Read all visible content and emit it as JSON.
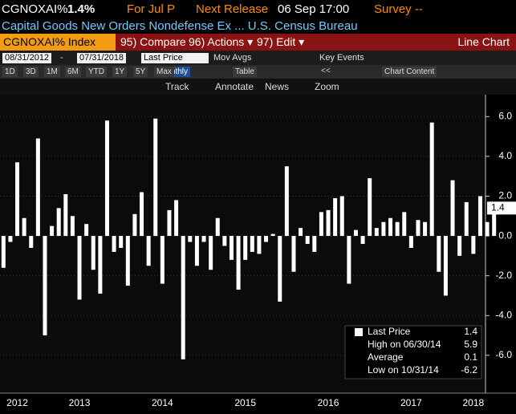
{
  "header": {
    "ticker": "CGNOXAI%",
    "price": "1.4%",
    "period": "For Jul P",
    "next_release": "Next Release",
    "release_date": "06 Sep 17:00",
    "survey": "Survey --",
    "description": "Capital Goods New Orders Nondefense Ex ... U.S. Census Bureau"
  },
  "tabs": {
    "security": "CGNOXAI% Index",
    "menus": [
      "95) Compare",
      "96) Actions ▾",
      "97) Edit ▾"
    ],
    "view": "Line Chart"
  },
  "toolbar": {
    "start_date": "08/31/2012",
    "end_date": "07/31/2018",
    "field": "Last Price",
    "mov_avgs": "Mov Avgs",
    "key_events": "Key Events"
  },
  "ranges": {
    "items": [
      "1D",
      "3D",
      "1M",
      "6M",
      "YTD",
      "1Y",
      "5Y",
      "Max"
    ],
    "frequency": "Monthly",
    "table": "Table",
    "chart_content": "Chart Content"
  },
  "tools": [
    "Track",
    "Annotate",
    "News",
    "Zoom"
  ],
  "chart_data": {
    "type": "bar",
    "color": "#ffffff",
    "grid": true,
    "categories": [
      null,
      null,
      "2012",
      null,
      null,
      null,
      null,
      null,
      null,
      null,
      null,
      "2013",
      null,
      null,
      null,
      null,
      null,
      null,
      null,
      null,
      null,
      null,
      null,
      "2014",
      null,
      null,
      null,
      null,
      null,
      null,
      null,
      null,
      null,
      null,
      null,
      "2015",
      null,
      null,
      null,
      null,
      null,
      null,
      null,
      null,
      null,
      null,
      null,
      "2016",
      null,
      null,
      null,
      null,
      null,
      null,
      null,
      null,
      null,
      null,
      null,
      "2017",
      null,
      null,
      null,
      null,
      null,
      null,
      null,
      null,
      "2018",
      null,
      null,
      null
    ],
    "values": [
      -1.6,
      -0.3,
      3.7,
      0.9,
      -0.6,
      4.9,
      -5.0,
      0.5,
      1.4,
      2.1,
      1.0,
      -3.2,
      0.6,
      -1.7,
      -2.9,
      5.8,
      -0.8,
      -0.6,
      -2.5,
      1.1,
      2.2,
      -1.5,
      5.9,
      -2.4,
      1.3,
      1.8,
      -6.2,
      -0.3,
      -1.5,
      -0.3,
      -1.7,
      0.9,
      -0.5,
      -1.2,
      -2.7,
      -1.2,
      -0.8,
      -0.9,
      -0.3,
      0.1,
      -3.3,
      3.5,
      -1.8,
      0.4,
      -0.4,
      -0.8,
      1.2,
      1.3,
      1.9,
      2.0,
      -2.4,
      0.3,
      -0.4,
      2.9,
      0.4,
      0.7,
      0.9,
      0.7,
      1.2,
      -0.6,
      0.8,
      0.7,
      5.7,
      -1.8,
      -3.0,
      2.8,
      -1.0,
      1.7,
      -0.9,
      2.0,
      0.7,
      1.4
    ],
    "ylim": [
      -7.9,
      7.1
    ],
    "yticks": [
      {
        "value": -6,
        "label": "-6.0"
      },
      {
        "value": -4,
        "label": "-4.0"
      },
      {
        "value": -2,
        "label": "-2.0"
      },
      {
        "value": 0,
        "label": "0.0"
      },
      {
        "value": 2,
        "label": "2.0"
      },
      {
        "value": 4,
        "label": "4.0"
      },
      {
        "value": 6,
        "label": "6.0"
      }
    ],
    "legend": {
      "items": [
        {
          "label": "Last Price",
          "value": 1.4
        },
        {
          "label": "High on 06/30/14",
          "value": 5.9
        },
        {
          "label": "Average",
          "value": 0.1
        },
        {
          "label": "Low on 10/31/14",
          "value": -6.2
        }
      ]
    }
  }
}
